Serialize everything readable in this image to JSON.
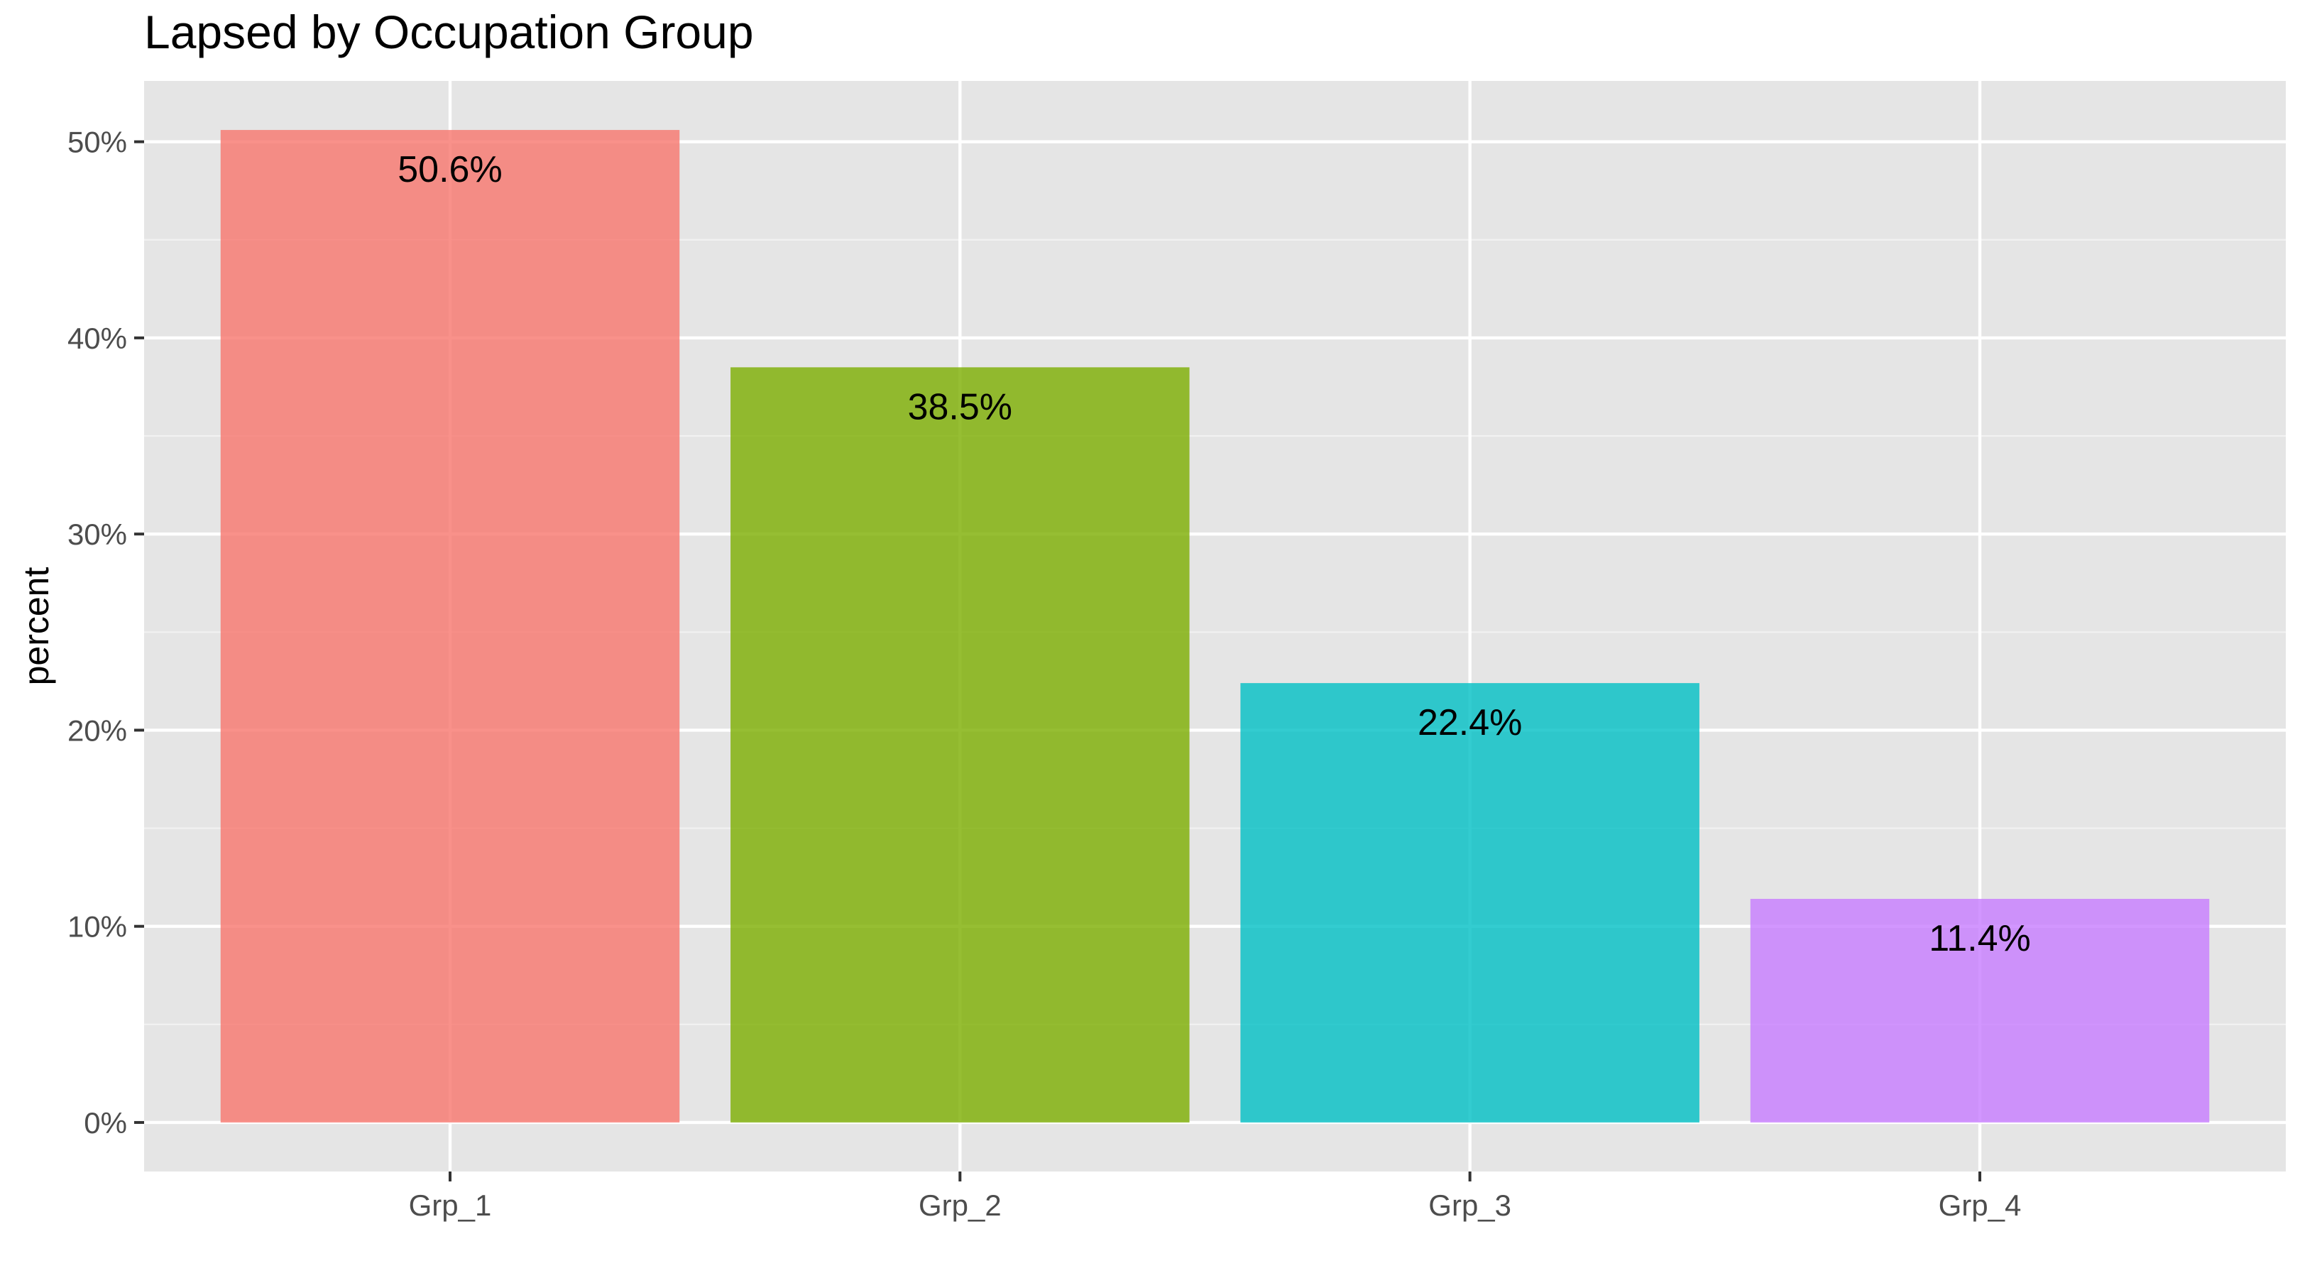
{
  "chart_data": {
    "type": "bar",
    "title": "Lapsed by Occupation Group",
    "xlabel": "",
    "ylabel": "percent",
    "categories": [
      "Grp_1",
      "Grp_2",
      "Grp_3",
      "Grp_4"
    ],
    "values": [
      50.6,
      38.5,
      22.4,
      11.4
    ],
    "data_labels": [
      "50.6%",
      "38.5%",
      "22.4%",
      "11.4%"
    ],
    "colors": [
      "#F8766D",
      "#7CAE00",
      "#00BFC4",
      "#C77CFF"
    ],
    "ylim": [
      -2.5,
      53.1
    ],
    "yticks": [
      0,
      10,
      20,
      30,
      40,
      50
    ],
    "ytick_labels": [
      "0%",
      "10%",
      "20%",
      "30%",
      "40%",
      "50%"
    ],
    "grid": true,
    "legend": "none",
    "panel_background": "#E5E5E5"
  }
}
